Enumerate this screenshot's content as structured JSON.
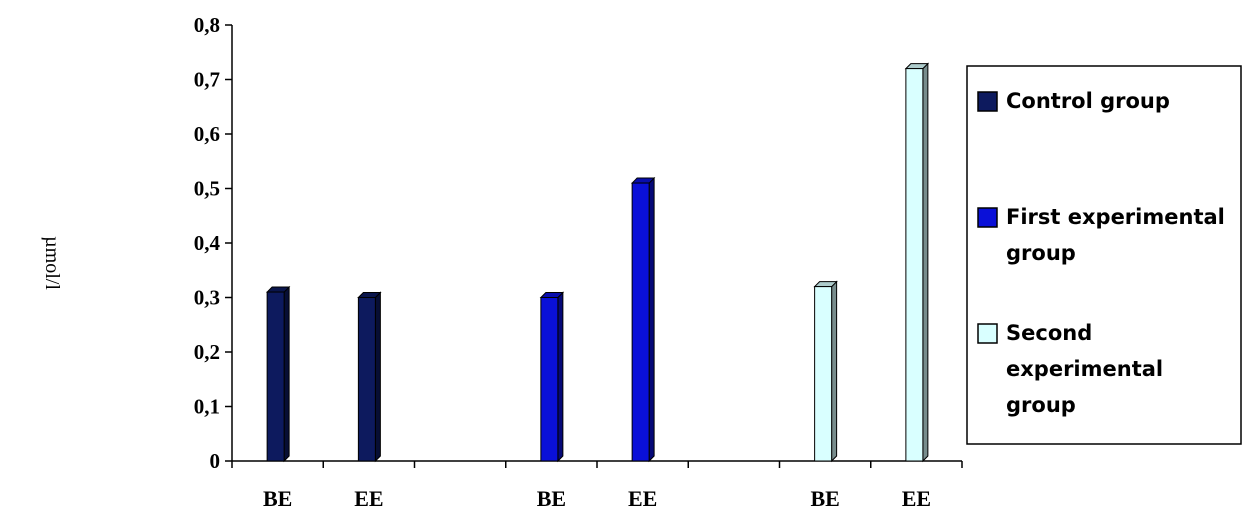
{
  "chart_data": {
    "type": "bar",
    "ylabel": "µmol/l",
    "xlabel": "",
    "ylim": [
      0,
      0.8
    ],
    "ytick_step": 0.1,
    "ytick_labels": [
      "0",
      "0,1",
      "0,2",
      "0,3",
      "0,4",
      "0,5",
      "0,6",
      "0,7",
      "0,8"
    ],
    "categories": [
      "BE",
      "EE",
      "",
      "BE",
      "EE",
      "",
      "BE",
      "EE"
    ],
    "series": [
      {
        "name": "Control group",
        "color": "#0d1a5e",
        "values": [
          0.31,
          0.3,
          null,
          null,
          null,
          null,
          null,
          null
        ]
      },
      {
        "name": "First experimental group",
        "color": "#0a10d8",
        "values": [
          null,
          null,
          null,
          0.3,
          0.51,
          null,
          null,
          null
        ]
      },
      {
        "name": "Second experimental group",
        "color": "#d9ffff",
        "values": [
          null,
          null,
          null,
          null,
          null,
          null,
          0.32,
          0.72
        ]
      }
    ],
    "legend": {
      "position": "right",
      "entries": [
        {
          "lines": [
            "Control group"
          ]
        },
        {
          "lines": [
            "First experimental",
            "group"
          ]
        },
        {
          "lines": [
            "Second",
            "experimental",
            "group"
          ]
        }
      ]
    },
    "grid": false
  }
}
